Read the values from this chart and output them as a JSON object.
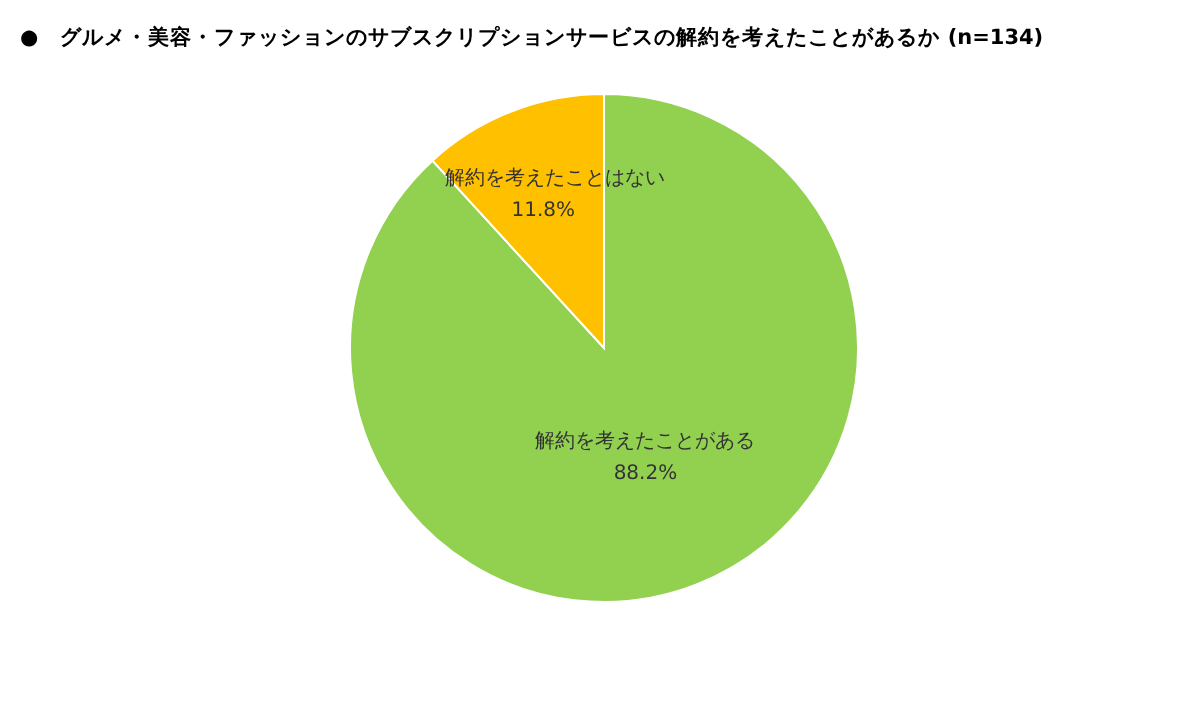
{
  "chart_data": {
    "type": "pie",
    "title": "●　グルメ・美容・ファッションのサブスクリプションサービスの解約を考えたことがあるか (n=134)",
    "categories": [
      "解約を考えたことがある",
      "解約を考えたことはない"
    ],
    "values": [
      88.2,
      11.8
    ],
    "value_labels": [
      "88.2%",
      "11.8%"
    ],
    "colors": [
      "#92d050",
      "#ffc000"
    ]
  }
}
